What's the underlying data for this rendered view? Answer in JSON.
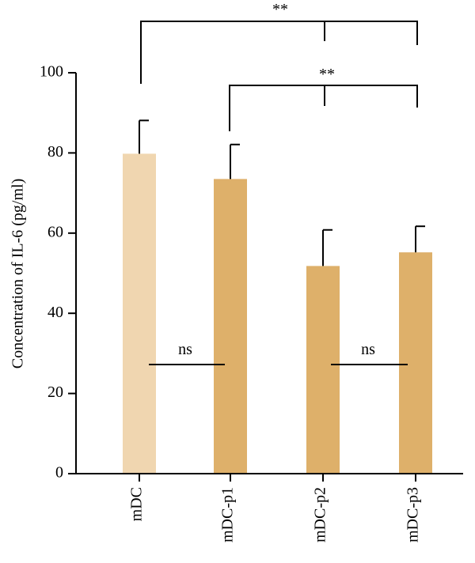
{
  "chart_data": {
    "type": "bar",
    "title": "",
    "xlabel": "",
    "ylabel": "Concentration of IL-6 (pg/ml)",
    "ylim": [
      0,
      100
    ],
    "yticks": [
      0,
      20,
      40,
      60,
      80,
      100
    ],
    "categories": [
      "mDC",
      "mDC-p1",
      "mDC-p2",
      "mDC-p3"
    ],
    "values": [
      79.8,
      73.5,
      51.8,
      55.2
    ],
    "errors": [
      8.3,
      8.6,
      9.0,
      6.5
    ],
    "bar_colors": [
      "#f0d6b0",
      "#deb06a",
      "#deb06a",
      "#deb06a"
    ],
    "grid": false,
    "annotations": {
      "ns_left": "ns",
      "ns_right": "ns",
      "sig_top": "**",
      "sig_mid": "**"
    }
  }
}
